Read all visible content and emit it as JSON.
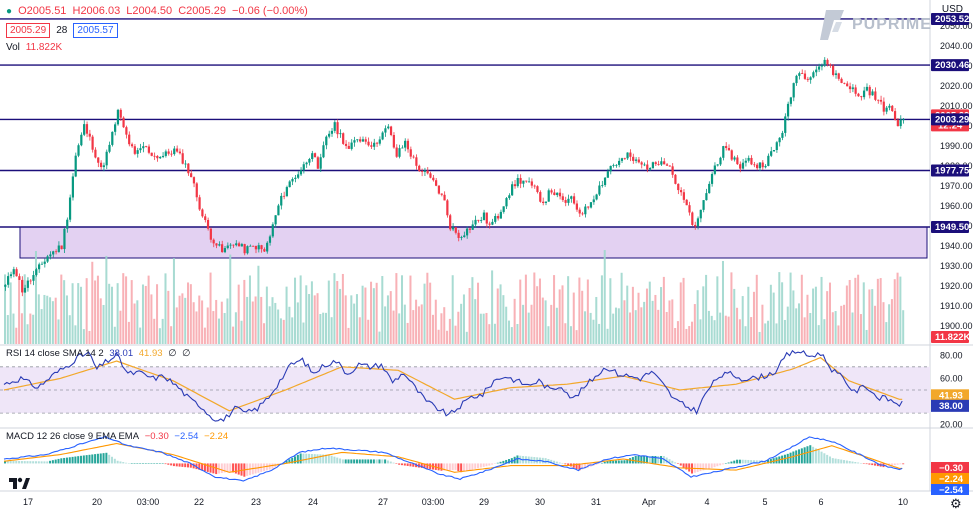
{
  "header": {
    "ohlc": {
      "o": "O2005.51",
      "h": "H2006.03",
      "l": "L2004.50",
      "c": "C2005.29",
      "chg": "−0.06 (−0.00%)"
    },
    "bid": "2005.29",
    "spread": "28",
    "ask": "2005.57",
    "vol_label": "Vol",
    "vol_value": "11.822K",
    "currency": "USD"
  },
  "brand": {
    "name": "PUPRIME"
  },
  "rsi_legend": {
    "label": "RSI 14 close SMA 14 2",
    "rsi": "38.01",
    "sma": "41.93",
    "z1": "∅",
    "z2": "∅"
  },
  "macd_legend": {
    "label": "MACD 12 26 close 9 EMA EMA",
    "hist": "−0.30",
    "macd": "−2.54",
    "signal": "−2.24"
  },
  "colors": {
    "up": "#089981",
    "down": "#f23645",
    "level": "#1b0f7a",
    "zone": "#e3d1f2",
    "rsi": "#2a3bb5",
    "rsi_ma": "#f2a82b",
    "macd": "#2962ff",
    "signal": "#ff9800"
  },
  "chart_data": [
    {
      "type": "candlestick",
      "title": "",
      "ylim": [
        1889,
        2061
      ],
      "y_ticks": [
        1900,
        1910,
        1920,
        1930,
        1940,
        1950,
        1960,
        1970,
        1980,
        1990,
        2000,
        2010,
        2020,
        2030,
        2040,
        2050,
        2060
      ],
      "x_tick_labels": [
        "17",
        "20",
        "03:00",
        "22",
        "23",
        "24",
        "27",
        "03:00",
        "29",
        "30",
        "31",
        "Apr",
        "4",
        "5",
        "6",
        "10"
      ],
      "horizontal_levels": [
        2053.52,
        2030.46,
        2003.29,
        1977.75,
        1949.5
      ],
      "support_zone": [
        1934,
        1949.5
      ],
      "price_tags": [
        {
          "label": "2053.52",
          "value": 2053.52,
          "kind": "level"
        },
        {
          "label": "2030.46",
          "value": 2030.46,
          "kind": "level"
        },
        {
          "label": "2005.29",
          "value": 2005.29,
          "kind": "last",
          "sub": "12:24"
        },
        {
          "label": "2003.29",
          "value": 2003.29,
          "kind": "level"
        },
        {
          "label": "1977.75",
          "value": 1977.75,
          "kind": "level"
        },
        {
          "label": "1949.50",
          "value": 1949.5,
          "kind": "level"
        },
        {
          "label": "11.822K",
          "value": 1892,
          "kind": "volume"
        }
      ],
      "close_path": [
        [
          0,
          1920
        ],
        [
          3,
          1930
        ],
        [
          6,
          1918
        ],
        [
          10,
          1925
        ],
        [
          15,
          1935
        ],
        [
          20,
          1940
        ],
        [
          22,
          1955
        ],
        [
          25,
          1985
        ],
        [
          28,
          2000
        ],
        [
          31,
          1990
        ],
        [
          34,
          1978
        ],
        [
          37,
          1990
        ],
        [
          40,
          2007
        ],
        [
          43,
          1995
        ],
        [
          46,
          1985
        ],
        [
          49,
          1990
        ],
        [
          53,
          1985
        ],
        [
          56,
          1985
        ],
        [
          60,
          1988
        ],
        [
          63,
          1983
        ],
        [
          66,
          1975
        ],
        [
          68,
          1965
        ],
        [
          70,
          1955
        ],
        [
          73,
          1945
        ],
        [
          77,
          1937
        ],
        [
          81,
          1942
        ],
        [
          85,
          1938
        ],
        [
          89,
          1940
        ],
        [
          92,
          1937
        ],
        [
          94,
          1945
        ],
        [
          97,
          1960
        ],
        [
          100,
          1970
        ],
        [
          103,
          1975
        ],
        [
          106,
          1980
        ],
        [
          109,
          1988
        ],
        [
          111,
          1977
        ],
        [
          114,
          1995
        ],
        [
          117,
          2000
        ],
        [
          120,
          1993
        ],
        [
          122,
          1988
        ],
        [
          125,
          1994
        ],
        [
          128,
          1993
        ],
        [
          131,
          1990
        ],
        [
          133,
          1995
        ],
        [
          136,
          1999
        ],
        [
          139,
          1985
        ],
        [
          142,
          1992
        ],
        [
          146,
          1980
        ],
        [
          150,
          1975
        ],
        [
          153,
          1970
        ],
        [
          156,
          1962
        ],
        [
          158,
          1950
        ],
        [
          161,
          1945
        ],
        [
          164,
          1948
        ],
        [
          167,
          1952
        ],
        [
          170,
          1955
        ],
        [
          172,
          1950
        ],
        [
          175,
          1955
        ],
        [
          178,
          1965
        ],
        [
          182,
          1973
        ],
        [
          185,
          1972
        ],
        [
          188,
          1968
        ],
        [
          191,
          1962
        ],
        [
          194,
          1968
        ],
        [
          198,
          1962
        ],
        [
          201,
          1963
        ],
        [
          204,
          1957
        ],
        [
          206,
          1958
        ],
        [
          209,
          1965
        ],
        [
          212,
          1972
        ],
        [
          215,
          1980
        ],
        [
          218,
          1982
        ],
        [
          221,
          1985
        ],
        [
          224,
          1982
        ],
        [
          227,
          1980
        ],
        [
          230,
          1980
        ],
        [
          233,
          1984
        ],
        [
          236,
          1980
        ],
        [
          239,
          1968
        ],
        [
          242,
          1960
        ],
        [
          244,
          1950
        ],
        [
          246,
          1952
        ],
        [
          249,
          1967
        ],
        [
          252,
          1980
        ],
        [
          255,
          1988
        ],
        [
          258,
          1985
        ],
        [
          261,
          1980
        ],
        [
          264,
          1983
        ],
        [
          267,
          1980
        ],
        [
          270,
          1982
        ],
        [
          273,
          1988
        ],
        [
          276,
          1998
        ],
        [
          279,
          2015
        ],
        [
          281,
          2027
        ],
        [
          285,
          2025
        ],
        [
          289,
          2030
        ],
        [
          292,
          2032
        ],
        [
          294,
          2027
        ],
        [
          297,
          2022
        ],
        [
          300,
          2020
        ],
        [
          303,
          2014
        ],
        [
          306,
          2019
        ],
        [
          309,
          2014
        ],
        [
          312,
          2009
        ],
        [
          315,
          2008
        ],
        [
          317,
          2000
        ],
        [
          319,
          2005.29
        ]
      ],
      "volume_bars_count": 320
    },
    {
      "type": "line",
      "title": "RSI 14 close SMA 14 2",
      "ylim": [
        18,
        88
      ],
      "y_ticks": [
        20,
        40,
        60,
        80
      ],
      "band": [
        30,
        70
      ],
      "series": [
        {
          "name": "RSI",
          "values": [
            [
              0,
              55
            ],
            [
              6,
              60
            ],
            [
              12,
              52
            ],
            [
              18,
              64
            ],
            [
              22,
              70
            ],
            [
              26,
              78
            ],
            [
              30,
              82
            ],
            [
              33,
              68
            ],
            [
              36,
              74
            ],
            [
              40,
              80
            ],
            [
              44,
              64
            ],
            [
              48,
              65
            ],
            [
              53,
              60
            ],
            [
              57,
              62
            ],
            [
              62,
              52
            ],
            [
              66,
              42
            ],
            [
              70,
              36
            ],
            [
              74,
              26
            ],
            [
              78,
              24
            ],
            [
              82,
              34
            ],
            [
              86,
              30
            ],
            [
              90,
              34
            ],
            [
              94,
              44
            ],
            [
              98,
              58
            ],
            [
              102,
              72
            ],
            [
              106,
              76
            ],
            [
              110,
              64
            ],
            [
              114,
              72
            ],
            [
              118,
              75
            ],
            [
              122,
              64
            ],
            [
              126,
              72
            ],
            [
              130,
              70
            ],
            [
              134,
              72
            ],
            [
              138,
              57
            ],
            [
              142,
              65
            ],
            [
              146,
              52
            ],
            [
              150,
              40
            ],
            [
              154,
              34
            ],
            [
              158,
              28
            ],
            [
              162,
              36
            ],
            [
              166,
              44
            ],
            [
              170,
              46
            ],
            [
              174,
              58
            ],
            [
              178,
              62
            ],
            [
              182,
              58
            ],
            [
              186,
              54
            ],
            [
              190,
              58
            ],
            [
              194,
              50
            ],
            [
              198,
              54
            ],
            [
              202,
              42
            ],
            [
              206,
              52
            ],
            [
              210,
              62
            ],
            [
              214,
              70
            ],
            [
              218,
              64
            ],
            [
              222,
              62
            ],
            [
              226,
              60
            ],
            [
              230,
              66
            ],
            [
              234,
              55
            ],
            [
              238,
              42
            ],
            [
              242,
              36
            ],
            [
              246,
              32
            ],
            [
              250,
              50
            ],
            [
              254,
              62
            ],
            [
              258,
              64
            ],
            [
              262,
              60
            ],
            [
              266,
              60
            ],
            [
              270,
              62
            ],
            [
              274,
              66
            ],
            [
              278,
              80
            ],
            [
              282,
              84
            ],
            [
              286,
              79
            ],
            [
              290,
              82
            ],
            [
              294,
              68
            ],
            [
              298,
              60
            ],
            [
              302,
              48
            ],
            [
              306,
              54
            ],
            [
              310,
              44
            ],
            [
              314,
              42
            ],
            [
              318,
              38
            ]
          ]
        },
        {
          "name": "SMA",
          "values": [
            [
              0,
              50
            ],
            [
              20,
              60
            ],
            [
              40,
              75
            ],
            [
              60,
              58
            ],
            [
              80,
              32
            ],
            [
              100,
              50
            ],
            [
              120,
              70
            ],
            [
              140,
              67
            ],
            [
              160,
              42
            ],
            [
              180,
              52
            ],
            [
              200,
              55
            ],
            [
              220,
              62
            ],
            [
              240,
              50
            ],
            [
              260,
              55
            ],
            [
              280,
              68
            ],
            [
              290,
              78
            ],
            [
              300,
              58
            ],
            [
              318,
              41.93
            ]
          ]
        }
      ]
    },
    {
      "type": "line",
      "title": "MACD 12 26 close 9 EMA EMA",
      "ylim": [
        -12,
        16
      ],
      "series": [
        {
          "name": "MACD",
          "values": [
            [
              0,
              2
            ],
            [
              15,
              4
            ],
            [
              28,
              9
            ],
            [
              36,
              12
            ],
            [
              44,
              8
            ],
            [
              56,
              5
            ],
            [
              66,
              0
            ],
            [
              75,
              -6
            ],
            [
              85,
              -8
            ],
            [
              95,
              -3
            ],
            [
              105,
              5
            ],
            [
              115,
              7
            ],
            [
              125,
              6
            ],
            [
              135,
              5
            ],
            [
              145,
              0
            ],
            [
              155,
              -5
            ],
            [
              162,
              -7
            ],
            [
              172,
              -3
            ],
            [
              182,
              2
            ],
            [
              192,
              1
            ],
            [
              204,
              -3
            ],
            [
              214,
              2
            ],
            [
              224,
              4
            ],
            [
              234,
              2
            ],
            [
              244,
              -6
            ],
            [
              252,
              -4
            ],
            [
              262,
              -1
            ],
            [
              270,
              1
            ],
            [
              278,
              6
            ],
            [
              286,
              12
            ],
            [
              294,
              10
            ],
            [
              304,
              4
            ],
            [
              312,
              -1
            ],
            [
              318,
              -2.54
            ]
          ]
        },
        {
          "name": "Signal",
          "values": [
            [
              0,
              1
            ],
            [
              20,
              4
            ],
            [
              40,
              9
            ],
            [
              60,
              4
            ],
            [
              80,
              -4
            ],
            [
              100,
              0
            ],
            [
              120,
              5
            ],
            [
              140,
              3
            ],
            [
              160,
              -4
            ],
            [
              180,
              -1
            ],
            [
              200,
              -1
            ],
            [
              220,
              2
            ],
            [
              240,
              -2
            ],
            [
              260,
              -3
            ],
            [
              280,
              3
            ],
            [
              294,
              8
            ],
            [
              306,
              3
            ],
            [
              318,
              -2.24
            ]
          ]
        }
      ],
      "right_tags": [
        {
          "label": "−0.30",
          "value": -0.3,
          "color": "#f23645"
        },
        {
          "label": "−2.24",
          "value": -2.24,
          "color": "#ff9800"
        },
        {
          "label": "−2.54",
          "value": -2.54,
          "color": "#2962ff"
        }
      ]
    }
  ]
}
